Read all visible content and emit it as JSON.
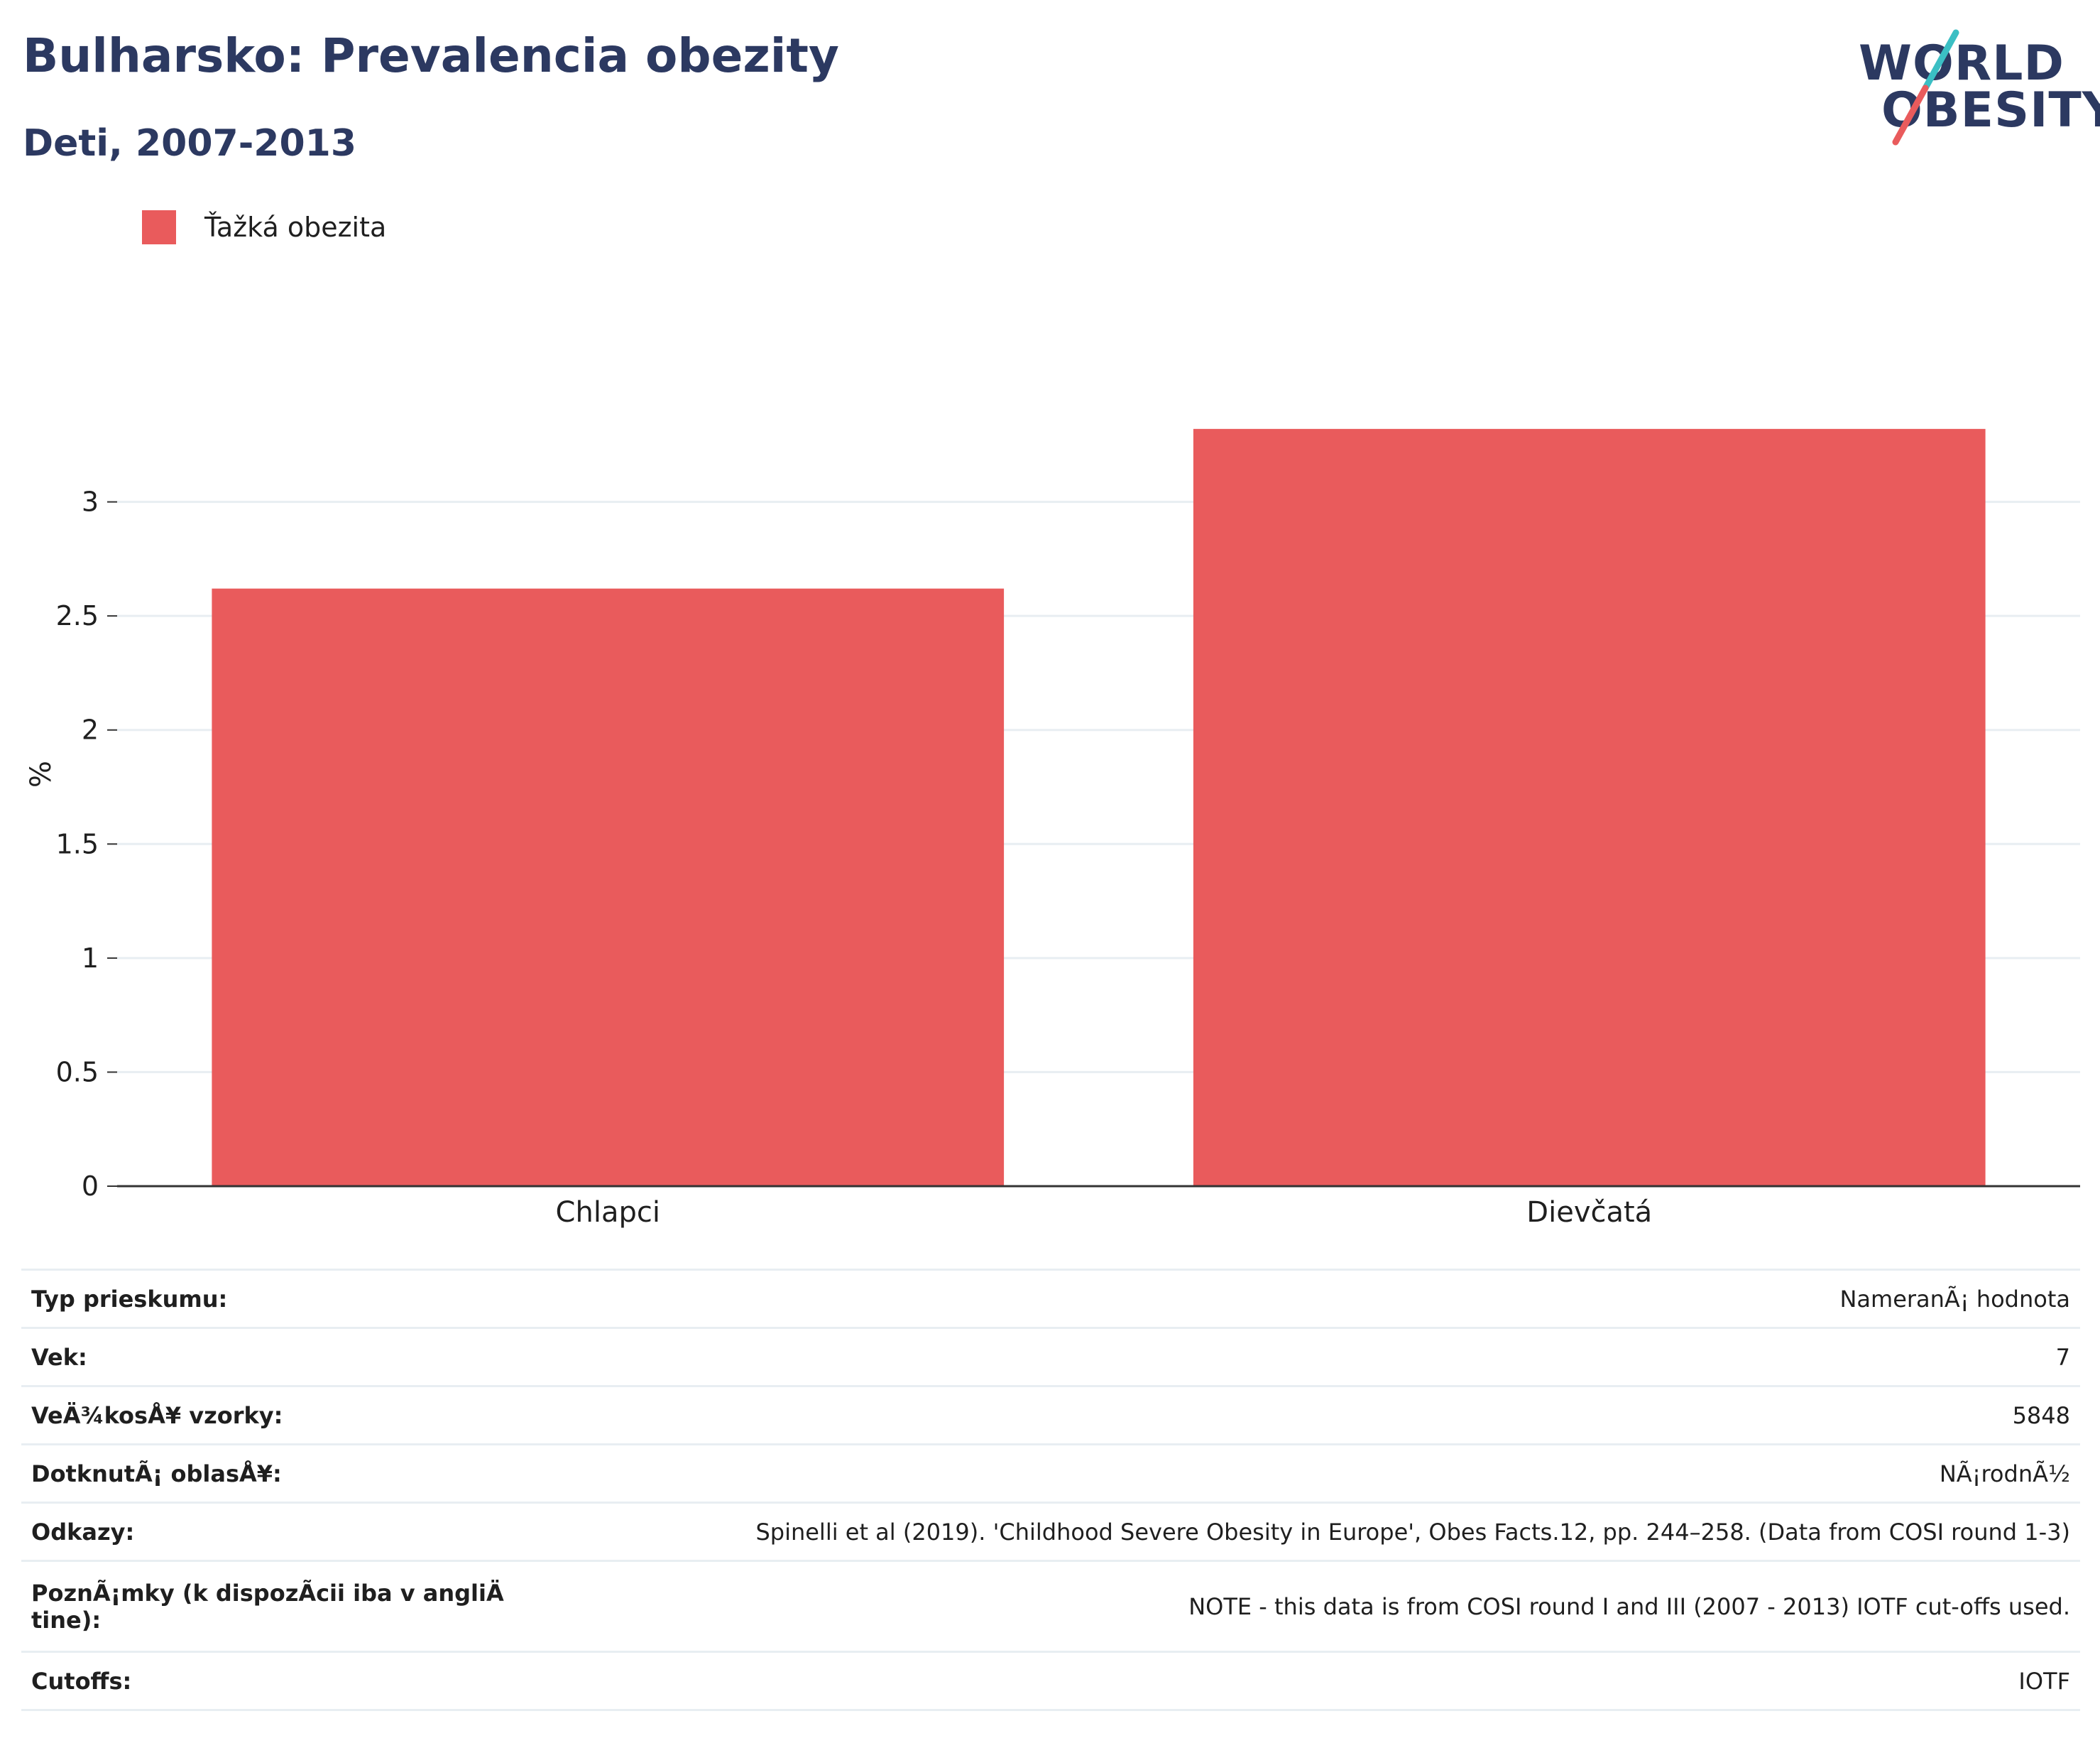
{
  "header": {
    "title": "Bulharsko: Prevalencia obezity",
    "subtitle": "Deti, 2007-2013"
  },
  "logo": {
    "line1": "WORLD",
    "line2": "OBESITY"
  },
  "colors": {
    "bar": "#e95b5c",
    "title": "#2c3961",
    "gridline": "#e8eef2",
    "axis": "#333333",
    "logo_teal": "#3bbfc4",
    "logo_red": "#e95b5c"
  },
  "chart_data": {
    "type": "bar",
    "categories": [
      "Chlapci",
      "Dievčatá"
    ],
    "series": [
      {
        "name": "Ťažká obezita",
        "values": [
          2.62,
          3.32
        ]
      }
    ],
    "ylabel": "%",
    "ylim": [
      0,
      3.55
    ],
    "yticks": [
      0,
      0.5,
      1,
      1.5,
      2,
      2.5,
      3
    ],
    "ytick_labels": [
      "0",
      "0.5",
      "1",
      "1.5",
      "2",
      "2.5",
      "3"
    ],
    "grid": true,
    "legend_position": "top-left"
  },
  "info": [
    {
      "key": "Typ prieskumu:",
      "value": "NameranÃ¡ hodnota"
    },
    {
      "key": "Vek:",
      "value": "7"
    },
    {
      "key": "VeÄ¾kosÅ¥ vzorky:",
      "value": "5848"
    },
    {
      "key": "DotknutÃ¡ oblasÅ¥:",
      "value": "NÃ¡rodnÃ½"
    },
    {
      "key": "Odkazy:",
      "value": "Spinelli et al (2019). 'Childhood Severe Obesity in Europe', Obes Facts.12, pp. 244–258. (Data from COSI round 1-3)"
    },
    {
      "key": "PoznÃ¡mky (k dispozÃ­cii iba v angliÄ tine):",
      "value": "NOTE - this data is from COSI round I and III (2007 - 2013) IOTF cut-offs used."
    },
    {
      "key": "Cutoffs:",
      "value": "IOTF"
    }
  ]
}
